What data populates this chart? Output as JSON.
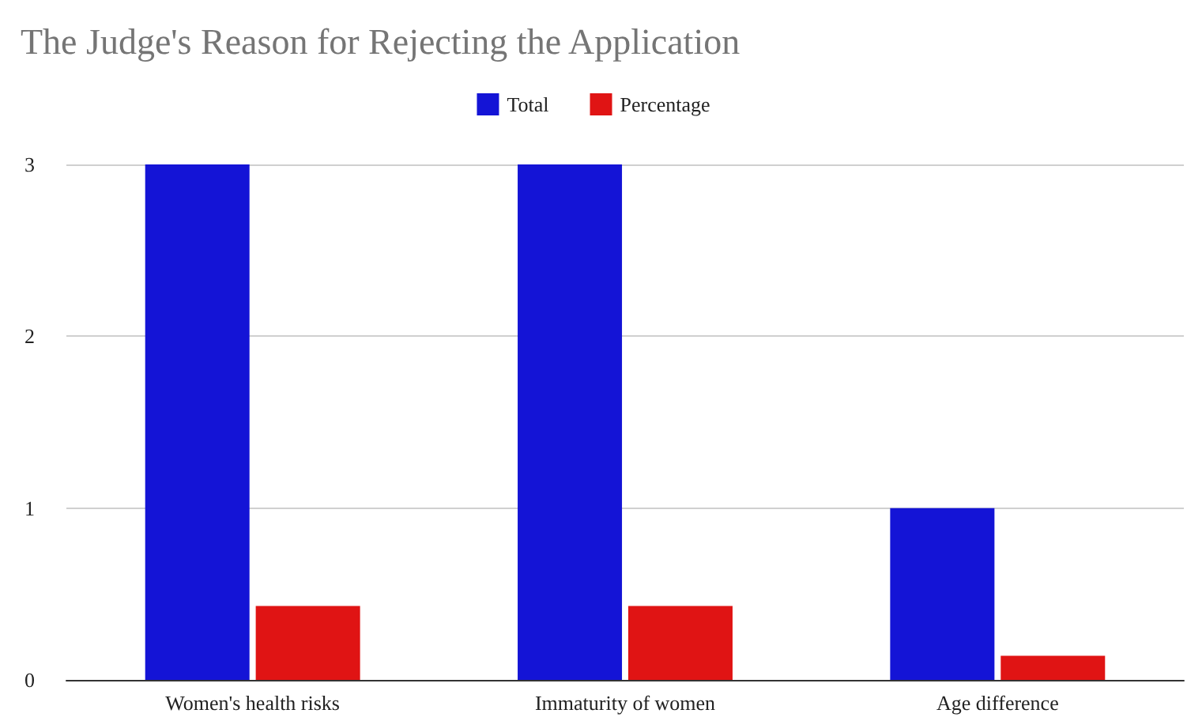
{
  "chart_data": {
    "type": "bar",
    "title": "The Judge's Reason for Rejecting the Application",
    "categories": [
      "Women's health risks",
      "Immaturity of women",
      "Age difference"
    ],
    "series": [
      {
        "name": "Total",
        "color": "#1414d6",
        "values": [
          3,
          3,
          1
        ]
      },
      {
        "name": "Percentage",
        "color": "#e01414",
        "values": [
          0.43,
          0.43,
          0.14
        ]
      }
    ],
    "ylim": [
      0,
      3
    ],
    "yticks": [
      0,
      1,
      2,
      3
    ],
    "grid": "y",
    "legend": "top"
  }
}
